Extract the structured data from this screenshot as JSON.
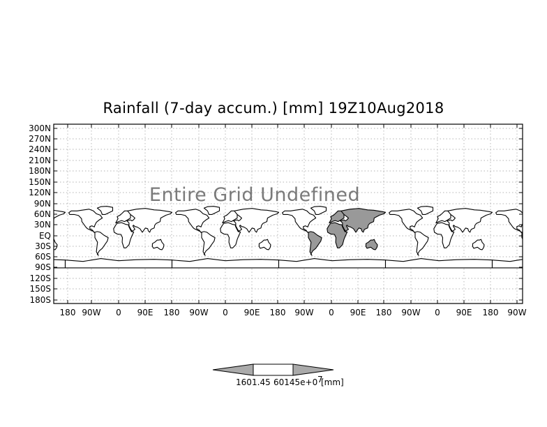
{
  "title": "Rainfall (7-day accum.) [mm] 19Z10Aug2018",
  "message": "Entire Grid Undefined",
  "y_tick_labels": [
    "300N",
    "270N",
    "240N",
    "210N",
    "180N",
    "150N",
    "120N",
    "90N",
    "60N",
    "30N",
    "EQ",
    "30S",
    "60S",
    "90S",
    "120S",
    "150S",
    "180S"
  ],
  "x_tick_labels": [
    "180",
    "90W",
    "0",
    "90E",
    "180",
    "90W",
    "0",
    "90E",
    "180",
    "90W",
    "0",
    "90E",
    "180",
    "90W",
    "0",
    "90E",
    "180",
    "90W"
  ],
  "colorbar": {
    "labels": [
      "160",
      "1.45",
      "60145e+0",
      "7",
      "[mm]"
    ],
    "colors": {
      "low": "#aaaaaa",
      "mid": "#ffffff",
      "high": "#aaaaaa"
    }
  },
  "colors": {
    "frame": "#000000",
    "grid": "#9a9a9a",
    "land_highlight": "#999999",
    "text_undefined": "#7a7a7a"
  }
}
